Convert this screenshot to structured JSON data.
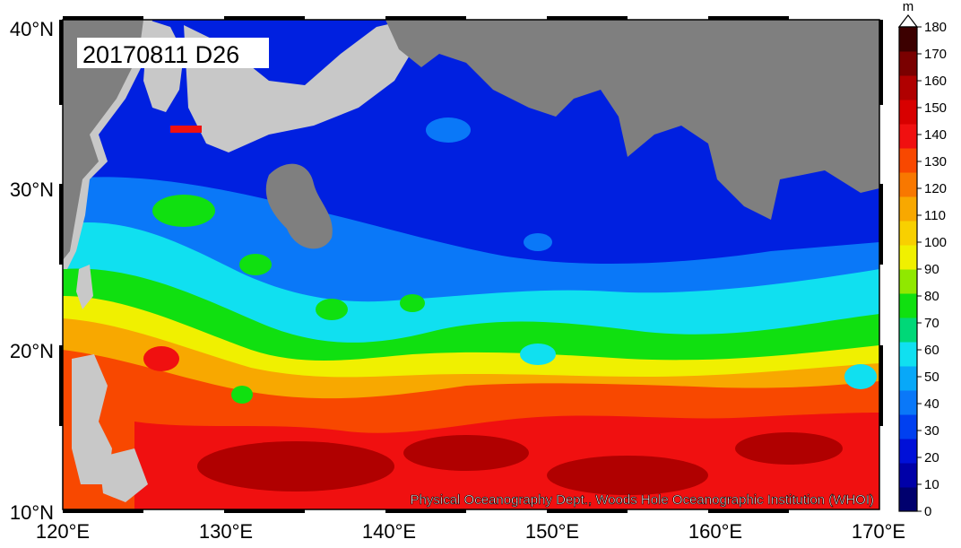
{
  "map": {
    "date_label": "20170811 D26",
    "credit": "Physical Oceanography Dept., Woods Hole Oceanographic Institution (WHOI)",
    "lat_labels": [
      "40°N",
      "30°N",
      "20°N",
      "10°N"
    ],
    "lon_labels": [
      "120°E",
      "130°E",
      "140°E",
      "150°E",
      "160°E",
      "170°E"
    ],
    "land_color": "#7f7f7f",
    "context_land_color": "#c8c8c8"
  },
  "colorbar": {
    "unit": "m",
    "ticks": [
      "0",
      "10",
      "20",
      "30",
      "40",
      "50",
      "60",
      "70",
      "80",
      "90",
      "100",
      "110",
      "120",
      "130",
      "140",
      "150",
      "160",
      "170",
      "180"
    ],
    "colors": [
      "#00006e",
      "#0000a8",
      "#0010d8",
      "#0040f0",
      "#0a78f8",
      "#08a8f8",
      "#10e0f0",
      "#00d878",
      "#10e010",
      "#90e800",
      "#f0f000",
      "#f8d000",
      "#f8a800",
      "#f87800",
      "#f84800",
      "#f01010",
      "#d80000",
      "#b00000",
      "#7a0000",
      "#3c0000"
    ]
  }
}
